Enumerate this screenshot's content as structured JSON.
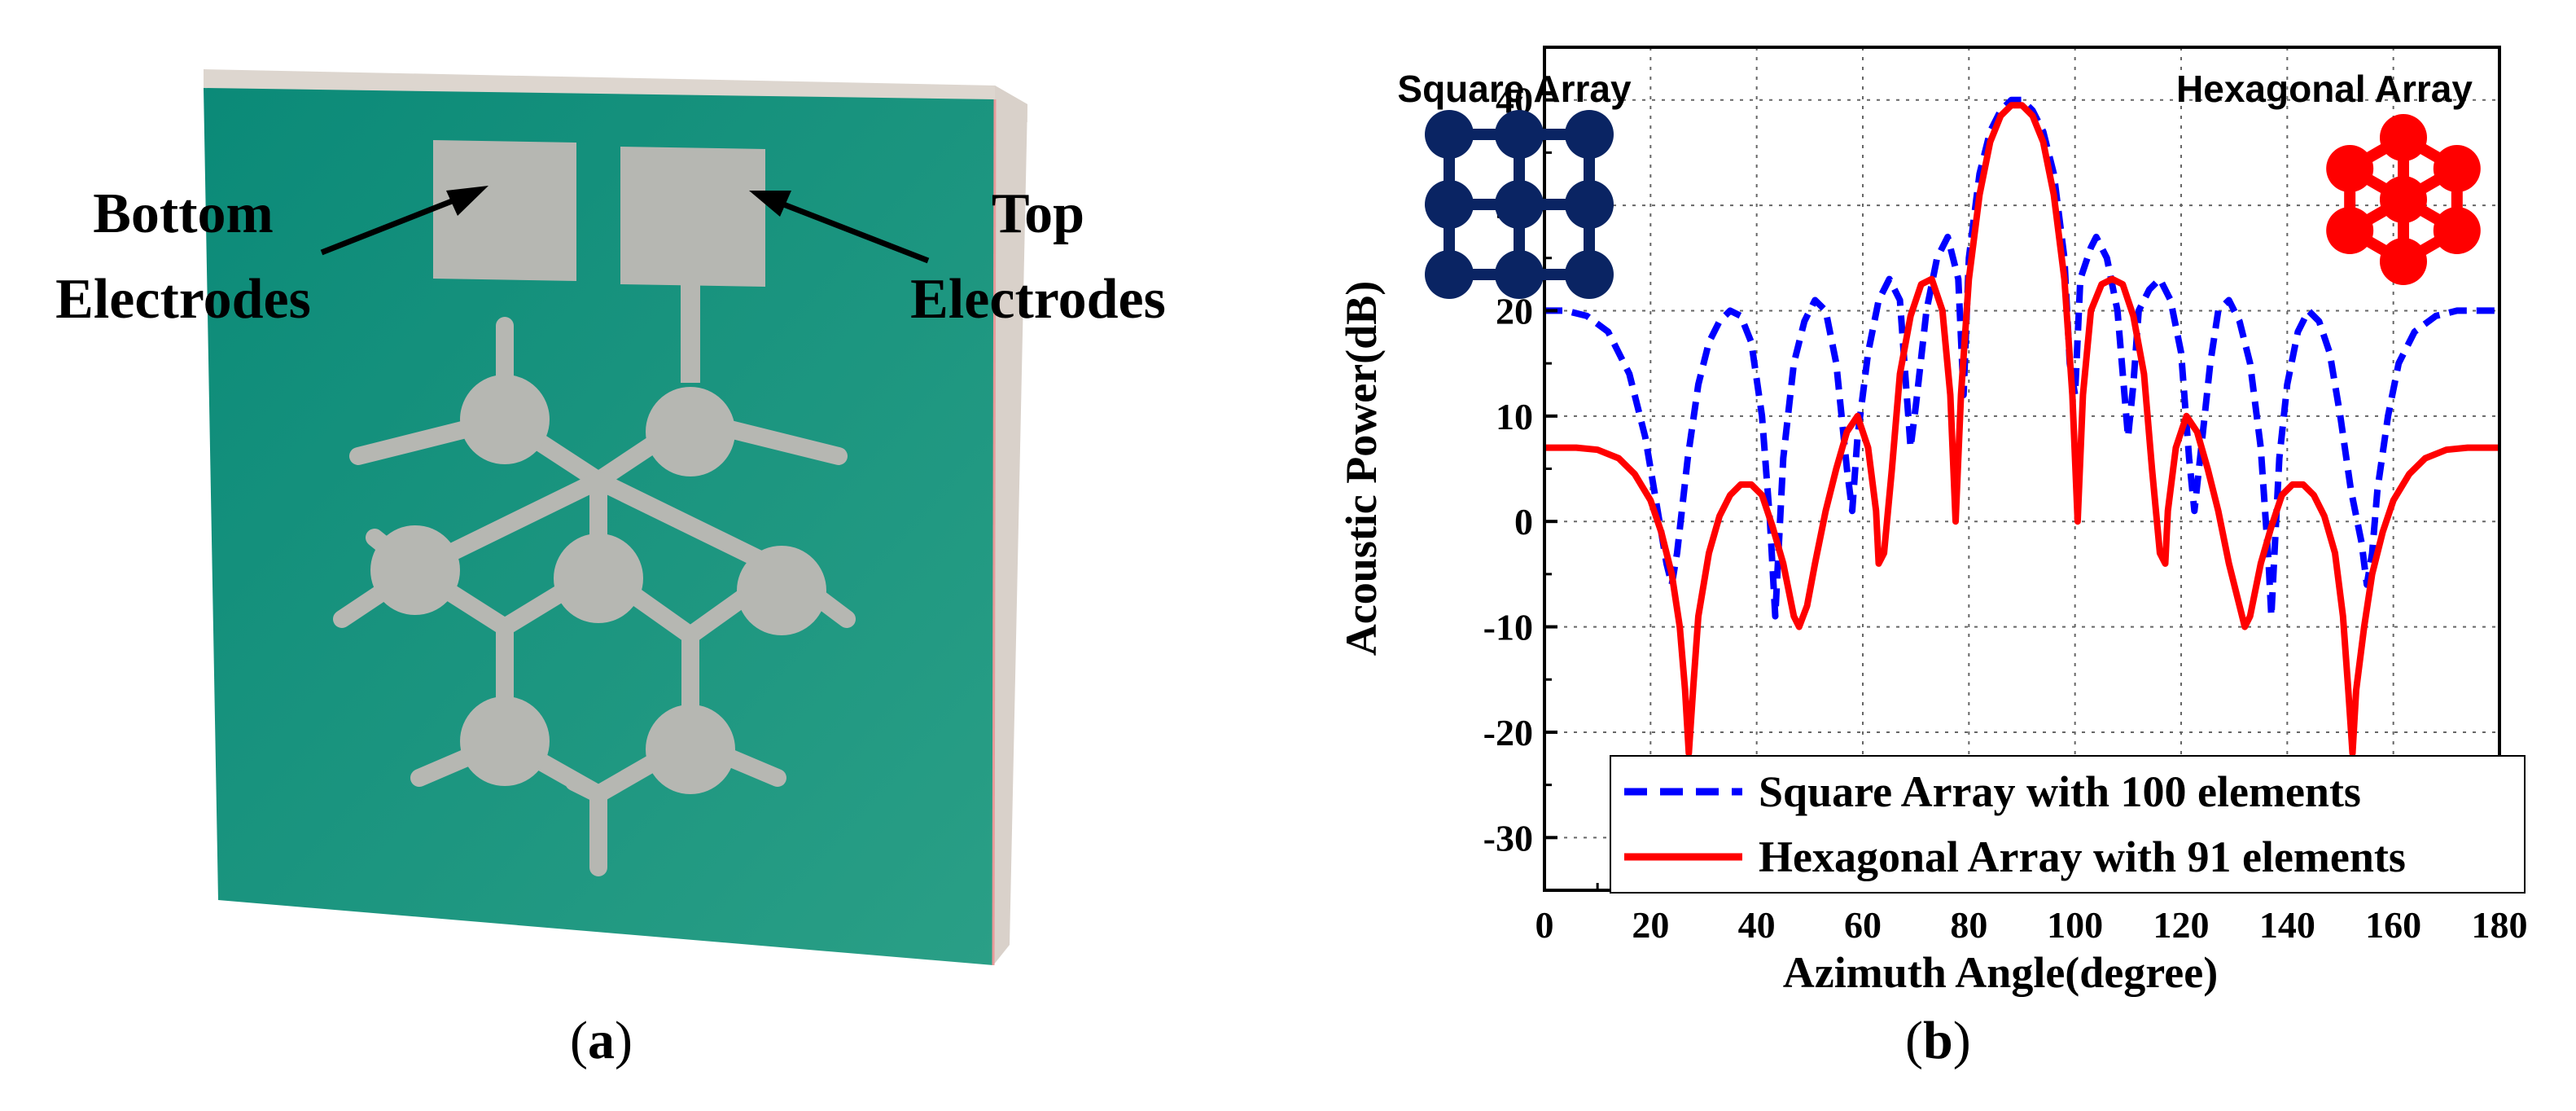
{
  "panel_a": {
    "caption_letter": "a",
    "label_bottom_line1": "Bottom",
    "label_bottom_line2": "Electrodes",
    "label_top_line1": "Top",
    "label_top_line2": "Electrodes",
    "colors": {
      "substrate": "#0e8f7c",
      "electrode": "#b4b5b0",
      "side": "#d8d2cc"
    }
  },
  "panel_b": {
    "caption_letter": "b",
    "inset_left_label": "Square Array",
    "inset_right_label": "Hexagonal Array",
    "inset_colors": {
      "square": "#0a2463",
      "hexagonal": "#ff0000"
    }
  },
  "chart_data": {
    "type": "line",
    "xlabel": "Azimuth Angle(degree)",
    "ylabel": "Acoustic Power(dB)",
    "xlim": [
      0,
      180
    ],
    "ylim": [
      -35,
      45
    ],
    "xticks": [
      0,
      20,
      40,
      60,
      80,
      100,
      120,
      140,
      160,
      180
    ],
    "yticks": [
      -30,
      -20,
      -10,
      0,
      10,
      20,
      30,
      40
    ],
    "grid": true,
    "legend_position": "bottom-right",
    "series": [
      {
        "name": "Square Array with 100 elements",
        "color": "#0000ff",
        "style": "dashed",
        "points": [
          [
            0,
            20
          ],
          [
            4,
            20
          ],
          [
            8,
            19.5
          ],
          [
            12,
            18
          ],
          [
            16,
            14
          ],
          [
            19,
            8
          ],
          [
            21,
            2
          ],
          [
            23,
            -4
          ],
          [
            24,
            -6
          ],
          [
            25,
            -3
          ],
          [
            27,
            6
          ],
          [
            29,
            13
          ],
          [
            31,
            17
          ],
          [
            33,
            19
          ],
          [
            35,
            20
          ],
          [
            37,
            19.5
          ],
          [
            39,
            17
          ],
          [
            41,
            10
          ],
          [
            42.5,
            0
          ],
          [
            43.5,
            -9
          ],
          [
            44,
            -4
          ],
          [
            45,
            6
          ],
          [
            47,
            15
          ],
          [
            49,
            19
          ],
          [
            51,
            21
          ],
          [
            53,
            20
          ],
          [
            55,
            15
          ],
          [
            57,
            5
          ],
          [
            58,
            1
          ],
          [
            59,
            8
          ],
          [
            61,
            16
          ],
          [
            63,
            21
          ],
          [
            65,
            23
          ],
          [
            67,
            21
          ],
          [
            68,
            14
          ],
          [
            69,
            7
          ],
          [
            70,
            11
          ],
          [
            72,
            20
          ],
          [
            74,
            25
          ],
          [
            76,
            27
          ],
          [
            78,
            23
          ],
          [
            79,
            12
          ],
          [
            80,
            25
          ],
          [
            82,
            33
          ],
          [
            84,
            37
          ],
          [
            86,
            39
          ],
          [
            88,
            40
          ],
          [
            90,
            40
          ],
          [
            92,
            39
          ],
          [
            94,
            37
          ],
          [
            96,
            33
          ],
          [
            98,
            25
          ],
          [
            99,
            15
          ],
          [
            100,
            12
          ],
          [
            101,
            23
          ],
          [
            103,
            26
          ],
          [
            104,
            27
          ],
          [
            106,
            25
          ],
          [
            108,
            20
          ],
          [
            109,
            14
          ],
          [
            110,
            8
          ],
          [
            111,
            13
          ],
          [
            112,
            20
          ],
          [
            114,
            22
          ],
          [
            116,
            23
          ],
          [
            118,
            21
          ],
          [
            120,
            16
          ],
          [
            121.5,
            6
          ],
          [
            122.5,
            1
          ],
          [
            124,
            8
          ],
          [
            125.5,
            15
          ],
          [
            127,
            20
          ],
          [
            129,
            21
          ],
          [
            131,
            19
          ],
          [
            133,
            15
          ],
          [
            135,
            7
          ],
          [
            136.5,
            -4
          ],
          [
            137,
            -9
          ],
          [
            137.5,
            -4
          ],
          [
            138.5,
            6
          ],
          [
            140,
            13
          ],
          [
            142,
            18
          ],
          [
            144,
            20
          ],
          [
            146,
            19
          ],
          [
            148,
            16
          ],
          [
            150,
            10
          ],
          [
            152,
            3
          ],
          [
            154,
            -2
          ],
          [
            155,
            -6
          ],
          [
            156,
            -3
          ],
          [
            157,
            3
          ],
          [
            159,
            10
          ],
          [
            161,
            15
          ],
          [
            164,
            18
          ],
          [
            168,
            19.5
          ],
          [
            172,
            20
          ],
          [
            176,
            20
          ],
          [
            180,
            20
          ]
        ]
      },
      {
        "name": "Hexagonal Array with 91 elements",
        "color": "#ff0000",
        "style": "solid",
        "points": [
          [
            0,
            7
          ],
          [
            6,
            7
          ],
          [
            10,
            6.8
          ],
          [
            14,
            6
          ],
          [
            17,
            4.5
          ],
          [
            20,
            2
          ],
          [
            22,
            -1
          ],
          [
            24,
            -5
          ],
          [
            25.5,
            -10
          ],
          [
            26.5,
            -16
          ],
          [
            27.2,
            -22
          ],
          [
            28,
            -16
          ],
          [
            29,
            -9
          ],
          [
            31,
            -3
          ],
          [
            33,
            0.5
          ],
          [
            35,
            2.5
          ],
          [
            37,
            3.5
          ],
          [
            39,
            3.5
          ],
          [
            41,
            2.5
          ],
          [
            43,
            -0.5
          ],
          [
            45,
            -4
          ],
          [
            47,
            -9
          ],
          [
            48,
            -10
          ],
          [
            49.5,
            -8
          ],
          [
            51,
            -4
          ],
          [
            53,
            1
          ],
          [
            55,
            5
          ],
          [
            57,
            8.5
          ],
          [
            59,
            10
          ],
          [
            61,
            7
          ],
          [
            62.5,
            1
          ],
          [
            63,
            -4
          ],
          [
            64,
            -3
          ],
          [
            65.5,
            5
          ],
          [
            67,
            14
          ],
          [
            69,
            19.5
          ],
          [
            71,
            22.5
          ],
          [
            73,
            23
          ],
          [
            75,
            20
          ],
          [
            76.5,
            12
          ],
          [
            77.5,
            0
          ],
          [
            78.5,
            12
          ],
          [
            80,
            23
          ],
          [
            82,
            31
          ],
          [
            84,
            36
          ],
          [
            86,
            38.5
          ],
          [
            88,
            39.5
          ],
          [
            90,
            39.5
          ],
          [
            92,
            38.5
          ],
          [
            94,
            36
          ],
          [
            96,
            31
          ],
          [
            98,
            23
          ],
          [
            99.5,
            12
          ],
          [
            100.5,
            0
          ],
          [
            101.5,
            12
          ],
          [
            103,
            20
          ],
          [
            105,
            22.5
          ],
          [
            107,
            23
          ],
          [
            109,
            22.5
          ],
          [
            111,
            19.5
          ],
          [
            113,
            14
          ],
          [
            114.5,
            5
          ],
          [
            116,
            -3
          ],
          [
            117,
            -4
          ],
          [
            117.5,
            1
          ],
          [
            119,
            7
          ],
          [
            121,
            10
          ],
          [
            123,
            8.5
          ],
          [
            125,
            5
          ],
          [
            127,
            1
          ],
          [
            129,
            -4
          ],
          [
            131,
            -8
          ],
          [
            132,
            -10
          ],
          [
            133,
            -9
          ],
          [
            135,
            -4
          ],
          [
            137,
            -0.5
          ],
          [
            139,
            2.5
          ],
          [
            141,
            3.5
          ],
          [
            143,
            3.5
          ],
          [
            145,
            2.5
          ],
          [
            147,
            0.5
          ],
          [
            149,
            -3
          ],
          [
            150.5,
            -9
          ],
          [
            151.5,
            -16
          ],
          [
            152.3,
            -22
          ],
          [
            153,
            -16
          ],
          [
            154.5,
            -10
          ],
          [
            156,
            -5
          ],
          [
            158,
            -1
          ],
          [
            160,
            2
          ],
          [
            163,
            4.5
          ],
          [
            166,
            6
          ],
          [
            170,
            6.8
          ],
          [
            174,
            7
          ],
          [
            180,
            7
          ]
        ]
      }
    ]
  }
}
